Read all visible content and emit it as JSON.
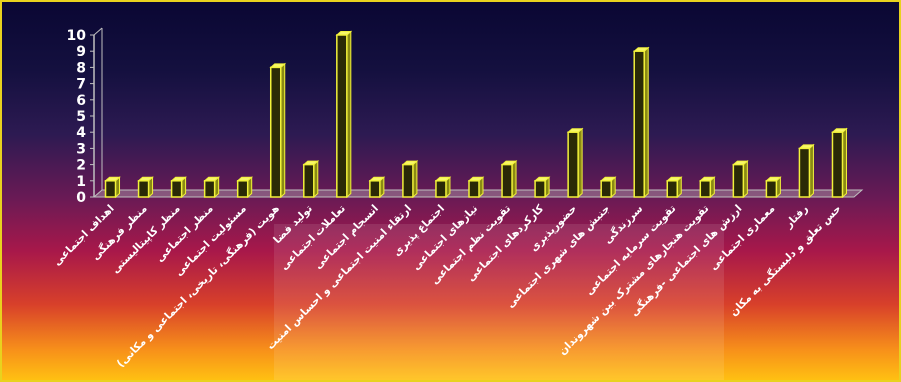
{
  "chart_data": {
    "type": "bar",
    "categories": [
      "اهداف اجتماعی",
      "منظر فرهنگی",
      "منظر کاپیتالیستی",
      "منظر اجتماعی",
      "مسئولیت اجتماعی",
      "هویت (فرهنگی، تاریخی، اجتماعی و مکانی)",
      "تولید فضا",
      "تعاملات اجتماعی",
      "انسجام اجتماعی",
      "ارتقاء امنیت اجتماعی و احساس امنیت",
      "اجتماع پذیری",
      "نیازهای اجتماعی",
      "تقویت نظم اجتماعی",
      "کارکردهای اجتماعی",
      "حضورپذیری",
      "جنبش های شهری اجتماعی",
      "سرزندگی",
      "تقویت سرمایه اجتماعی",
      "تقویت هنجارهای مشترک بین شهروندان",
      "ارزش های اجتماعی -فرهنگی",
      "معماری اجتماعی",
      "رفتار",
      "حس تعلق و دلبستگی به مکان"
    ],
    "values": [
      1,
      1,
      1,
      1,
      1,
      8,
      2,
      10,
      1,
      2,
      1,
      1,
      2,
      1,
      4,
      1,
      9,
      1,
      1,
      2,
      1,
      3,
      4
    ],
    "ylim": [
      0,
      10
    ],
    "yticks": [
      "0",
      "1",
      "2",
      "3",
      "4",
      "5",
      "6",
      "7",
      "8",
      "9",
      "10"
    ],
    "title": "",
    "xlabel": "",
    "ylabel": "",
    "grid": false,
    "legend": "none",
    "colors": {
      "bar_front": "#2a2a06",
      "bar_edge": "#f2f23a",
      "bar_top": "#f7f76a",
      "bar_side": "#8a8a14",
      "axis": "#c0c0c0",
      "text": "#ffffff",
      "border": "#e8d21e"
    }
  }
}
